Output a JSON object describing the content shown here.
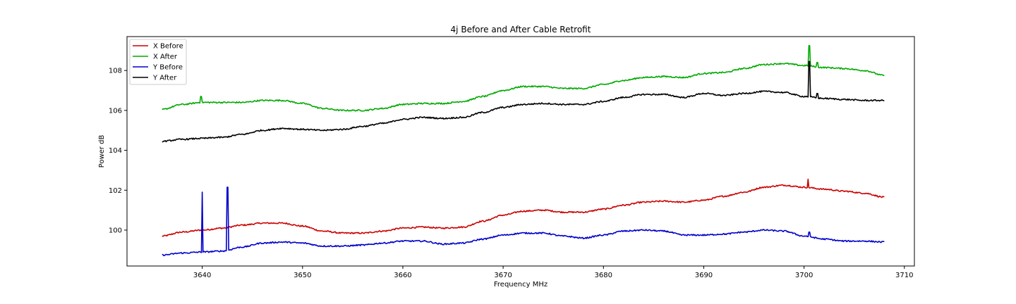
{
  "chart_data": {
    "type": "line",
    "title": "4j Before and After Cable Retrofit",
    "xlabel": "Frequency MHz",
    "ylabel": "Power dB",
    "xlim": [
      3632.5,
      3711.0
    ],
    "ylim": [
      98.2,
      109.7
    ],
    "xticks": [
      3640,
      3650,
      3660,
      3670,
      3680,
      3690,
      3700,
      3710
    ],
    "yticks": [
      100,
      102,
      104,
      106,
      108
    ],
    "grid": false,
    "legend_position": "top-left",
    "series": [
      {
        "name": "X Before",
        "color": "#cc0000",
        "x": [
          3636,
          3638,
          3640,
          3642,
          3644,
          3646,
          3648,
          3650,
          3652,
          3654,
          3656,
          3658,
          3660,
          3662,
          3664,
          3666,
          3668,
          3670,
          3672,
          3674,
          3676,
          3678,
          3680,
          3682,
          3684,
          3686,
          3688,
          3690,
          3692,
          3694,
          3696,
          3698,
          3700,
          3702,
          3704,
          3706,
          3708
        ],
        "y": [
          99.7,
          99.9,
          100.0,
          100.1,
          100.25,
          100.35,
          100.35,
          100.2,
          99.95,
          99.85,
          99.85,
          99.95,
          100.1,
          100.15,
          100.1,
          100.15,
          100.45,
          100.75,
          100.95,
          101.0,
          100.9,
          100.9,
          101.05,
          101.25,
          101.4,
          101.45,
          101.4,
          101.5,
          101.7,
          101.9,
          102.15,
          102.25,
          102.15,
          102.05,
          101.95,
          101.85,
          101.65
        ],
        "spikes": [
          {
            "x": 3700.4,
            "y": 102.55
          }
        ]
      },
      {
        "name": "X After",
        "color": "#00aa00",
        "x": [
          3636,
          3638,
          3640,
          3642,
          3644,
          3646,
          3648,
          3650,
          3652,
          3654,
          3656,
          3658,
          3660,
          3662,
          3664,
          3666,
          3668,
          3670,
          3672,
          3674,
          3676,
          3678,
          3680,
          3682,
          3684,
          3686,
          3688,
          3690,
          3692,
          3694,
          3696,
          3698,
          3700,
          3702,
          3704,
          3706,
          3708
        ],
        "y": [
          106.05,
          106.3,
          106.4,
          106.4,
          106.4,
          106.5,
          106.5,
          106.35,
          106.1,
          106.0,
          106.0,
          106.1,
          106.3,
          106.35,
          106.35,
          106.45,
          106.7,
          107.0,
          107.2,
          107.2,
          107.1,
          107.1,
          107.3,
          107.5,
          107.65,
          107.7,
          107.65,
          107.85,
          107.9,
          108.1,
          108.3,
          108.35,
          108.25,
          108.15,
          108.1,
          108.0,
          107.75
        ],
        "spikes": [
          {
            "x": 3639.9,
            "y": 106.7
          },
          {
            "x": 3700.5,
            "y": 109.25
          },
          {
            "x": 3701.3,
            "y": 108.4
          }
        ]
      },
      {
        "name": "Y Before",
        "color": "#0000cc",
        "x": [
          3636,
          3638,
          3640,
          3642,
          3644,
          3646,
          3648,
          3650,
          3652,
          3654,
          3656,
          3658,
          3660,
          3662,
          3664,
          3666,
          3668,
          3670,
          3672,
          3674,
          3676,
          3678,
          3680,
          3682,
          3684,
          3686,
          3688,
          3690,
          3692,
          3694,
          3696,
          3698,
          3700,
          3702,
          3704,
          3706,
          3708
        ],
        "y": [
          98.75,
          98.85,
          98.9,
          98.95,
          99.15,
          99.35,
          99.4,
          99.35,
          99.2,
          99.2,
          99.25,
          99.35,
          99.45,
          99.45,
          99.3,
          99.35,
          99.55,
          99.75,
          99.85,
          99.85,
          99.7,
          99.6,
          99.75,
          99.95,
          100.0,
          99.95,
          99.75,
          99.75,
          99.8,
          99.9,
          100.0,
          99.95,
          99.7,
          99.55,
          99.45,
          99.45,
          99.4
        ],
        "spikes": [
          {
            "x": 3640.0,
            "y": 101.9
          },
          {
            "x": 3642.5,
            "y": 102.15
          },
          {
            "x": 3700.5,
            "y": 99.9
          }
        ]
      },
      {
        "name": "Y After",
        "color": "#000000",
        "x": [
          3636,
          3638,
          3640,
          3642,
          3644,
          3646,
          3648,
          3650,
          3652,
          3654,
          3656,
          3658,
          3660,
          3662,
          3664,
          3666,
          3668,
          3670,
          3672,
          3674,
          3676,
          3678,
          3680,
          3682,
          3684,
          3686,
          3688,
          3690,
          3692,
          3694,
          3696,
          3698,
          3700,
          3702,
          3704,
          3706,
          3708
        ],
        "y": [
          104.45,
          104.55,
          104.6,
          104.65,
          104.8,
          105.0,
          105.1,
          105.05,
          105.0,
          105.05,
          105.2,
          105.35,
          105.55,
          105.65,
          105.6,
          105.65,
          105.9,
          106.15,
          106.3,
          106.35,
          106.3,
          106.3,
          106.45,
          106.65,
          106.8,
          106.8,
          106.65,
          106.85,
          106.75,
          106.85,
          106.95,
          106.9,
          106.7,
          106.6,
          106.55,
          106.5,
          106.5
        ],
        "spikes": [
          {
            "x": 3700.5,
            "y": 108.45
          },
          {
            "x": 3701.3,
            "y": 106.85
          }
        ]
      }
    ]
  }
}
